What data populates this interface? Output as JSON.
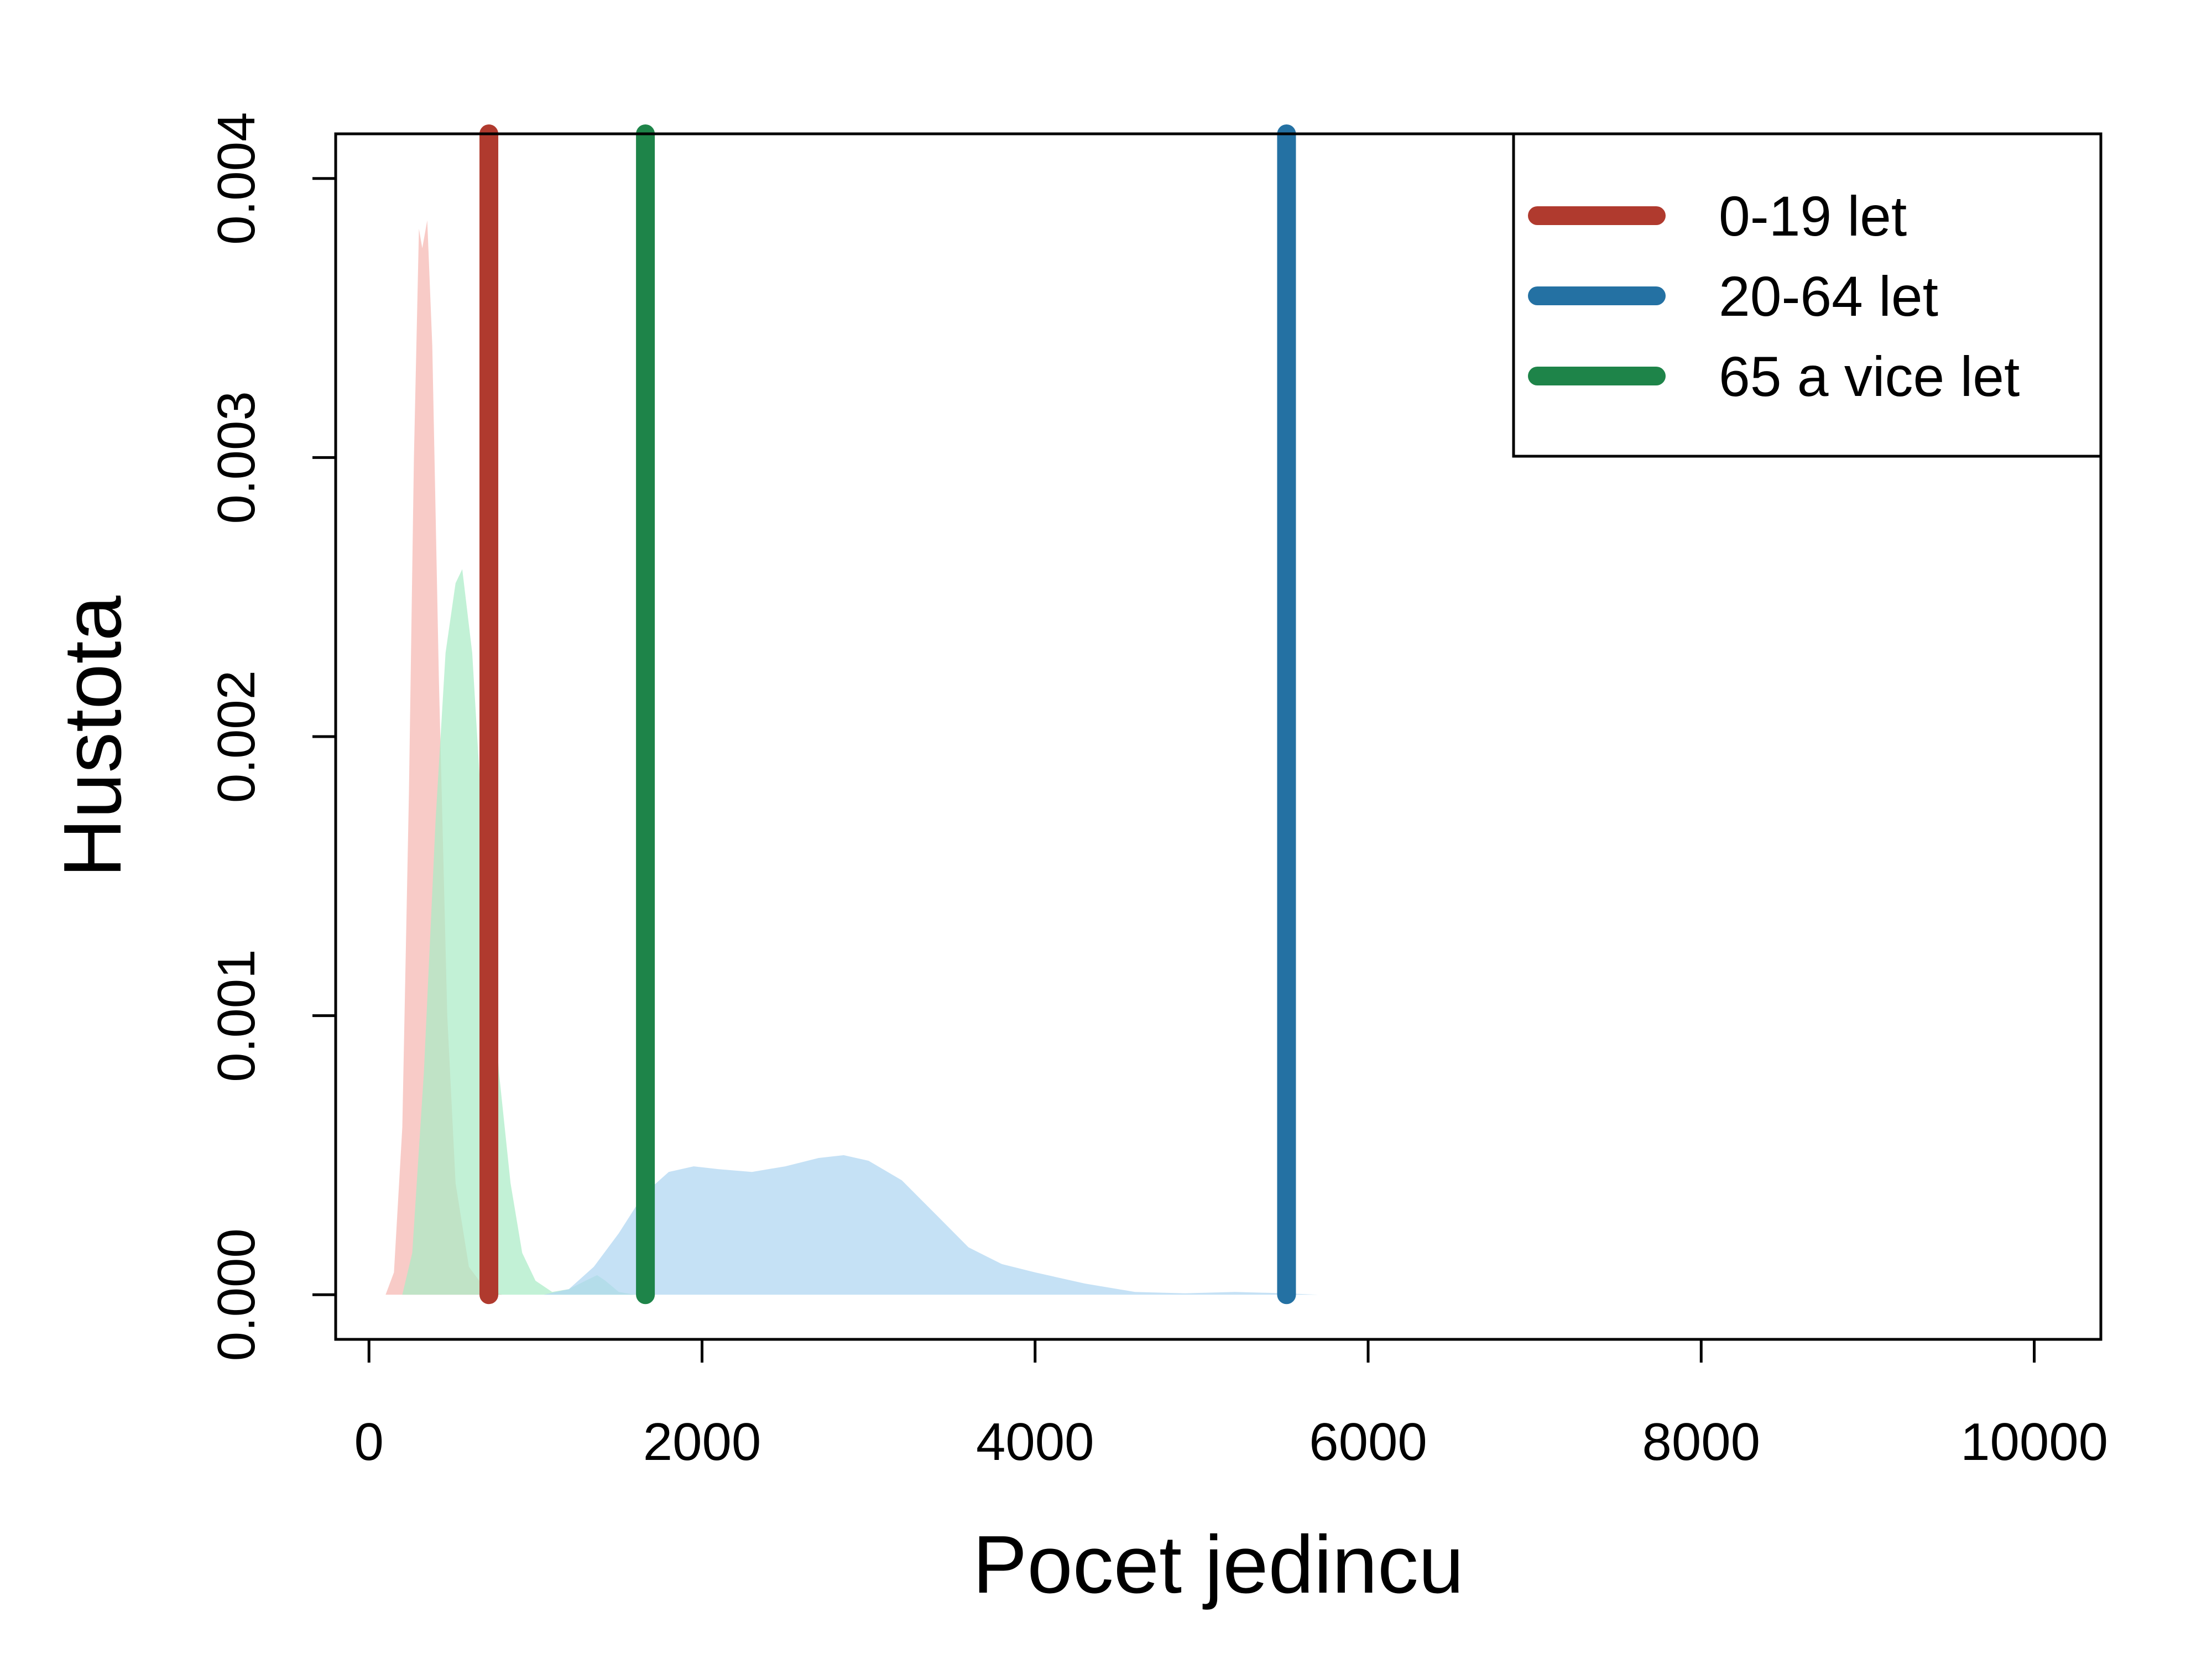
{
  "chart_data": {
    "type": "area",
    "xlabel": "Pocet jedincu",
    "ylabel": "Hustota",
    "xlim": [
      -200,
      10400
    ],
    "ylim": [
      -0.00016,
      0.00416
    ],
    "x_ticks": [
      0,
      2000,
      4000,
      6000,
      8000,
      10000
    ],
    "x_tick_labels": [
      "0",
      "2000",
      "4000",
      "6000",
      "8000",
      "10000"
    ],
    "y_ticks": [
      0,
      0.001,
      0.002,
      0.003,
      0.004
    ],
    "y_tick_labels": [
      "0.000",
      "0.001",
      "0.002",
      "0.003",
      "0.004"
    ],
    "legend": {
      "position": "top-right",
      "entries": [
        {
          "label": "0-19 let",
          "color": "#b03a2e"
        },
        {
          "label": "20-64 let",
          "color": "#2471a3"
        },
        {
          "label": "65 a vice let",
          "color": "#1e8449"
        }
      ]
    },
    "series": [
      {
        "fill_color": "#f5b7b1",
        "points": [
          [
            100,
            0
          ],
          [
            150,
            8e-05
          ],
          [
            200,
            0.0006
          ],
          [
            240,
            0.0018
          ],
          [
            270,
            0.003
          ],
          [
            300,
            0.00382
          ],
          [
            320,
            0.00375
          ],
          [
            350,
            0.00385
          ],
          [
            380,
            0.0034
          ],
          [
            420,
            0.0022
          ],
          [
            470,
            0.001
          ],
          [
            520,
            0.0004
          ],
          [
            600,
            0.0001
          ],
          [
            700,
            2e-05
          ],
          [
            800,
            0
          ]
        ]
      },
      {
        "fill_color": "#abebc6",
        "points": [
          [
            200,
            0
          ],
          [
            260,
            0.00015
          ],
          [
            330,
            0.0008
          ],
          [
            400,
            0.0017
          ],
          [
            460,
            0.0023
          ],
          [
            520,
            0.00255
          ],
          [
            560,
            0.0026
          ],
          [
            620,
            0.0023
          ],
          [
            700,
            0.0015
          ],
          [
            780,
            0.0008
          ],
          [
            850,
            0.0004
          ],
          [
            920,
            0.00015
          ],
          [
            1000,
            5e-05
          ],
          [
            1100,
            1e-05
          ],
          [
            1200,
            2e-05
          ],
          [
            1300,
            5e-05
          ],
          [
            1370,
            7e-05
          ],
          [
            1420,
            5e-05
          ],
          [
            1500,
            1e-05
          ],
          [
            1600,
            0
          ]
        ]
      },
      {
        "fill_color": "#aed6f1",
        "points": [
          [
            1050,
            0
          ],
          [
            1200,
            2e-05
          ],
          [
            1350,
            0.0001
          ],
          [
            1500,
            0.00022
          ],
          [
            1650,
            0.00036
          ],
          [
            1800,
            0.00044
          ],
          [
            1950,
            0.00046
          ],
          [
            2100,
            0.00045
          ],
          [
            2300,
            0.00044
          ],
          [
            2500,
            0.00046
          ],
          [
            2700,
            0.00049
          ],
          [
            2850,
            0.0005
          ],
          [
            3000,
            0.00048
          ],
          [
            3200,
            0.00041
          ],
          [
            3400,
            0.00029
          ],
          [
            3600,
            0.00017
          ],
          [
            3800,
            0.00011
          ],
          [
            4000,
            8e-05
          ],
          [
            4300,
            4e-05
          ],
          [
            4600,
            1e-05
          ],
          [
            4900,
            5e-06
          ],
          [
            5200,
            1e-05
          ],
          [
            5500,
            5e-06
          ],
          [
            5700,
            0
          ]
        ]
      }
    ],
    "vlines": [
      {
        "x": 720,
        "color": "#b03a2e"
      },
      {
        "x": 1660,
        "color": "#1e8449"
      },
      {
        "x": 5510,
        "color": "#2471a3"
      }
    ]
  }
}
